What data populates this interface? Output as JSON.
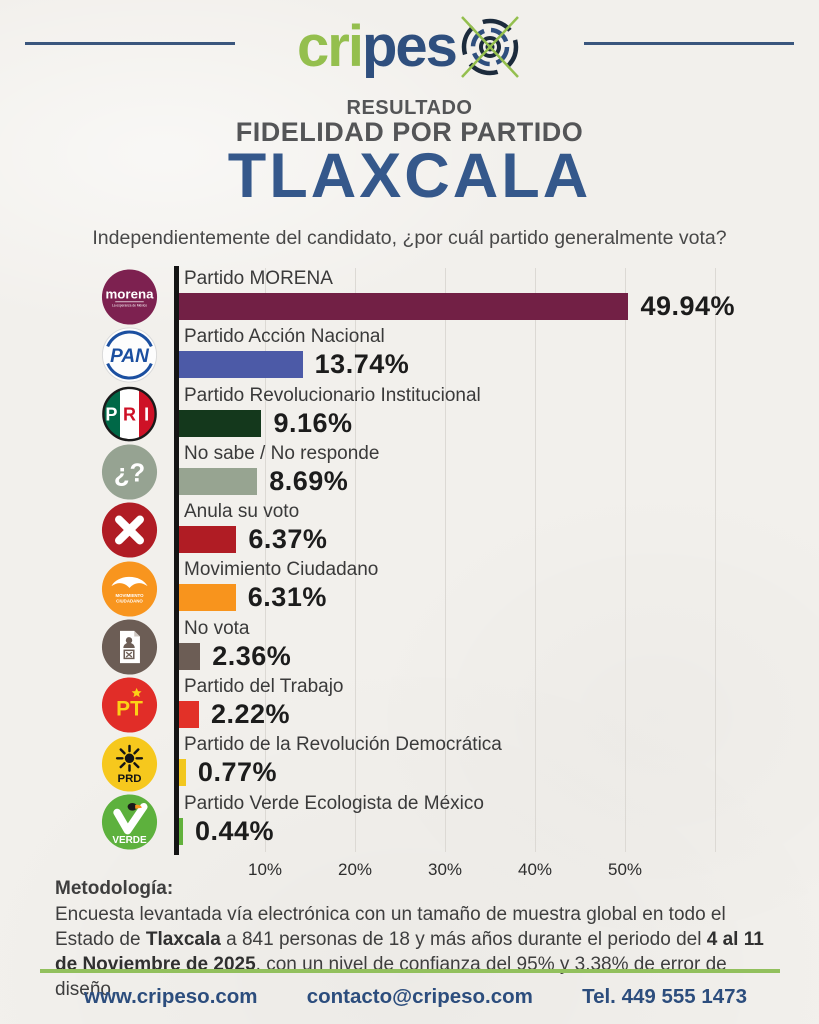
{
  "header": {
    "logo": {
      "part1": "cri",
      "part2": "pes",
      "color_green": "#94bf4e",
      "color_blue": "#2f4f7e"
    },
    "title_line1": "RESULTADO",
    "title_line2": "FIDELIDAD POR PARTIDO",
    "state": "TLAXCALA",
    "subtitle": "Independientemente del candidato, ¿por cuál partido generalmente vota?"
  },
  "chart_data": {
    "type": "bar",
    "orientation": "horizontal",
    "unit": "percent",
    "xlim": [
      0,
      50
    ],
    "x_ticks": [
      "10%",
      "20%",
      "30%",
      "40%",
      "50%"
    ],
    "grid": true,
    "rows": [
      {
        "party": "Partido MORENA",
        "value": 49.94,
        "label": "49.94%",
        "color": "#722045",
        "icon": "morena-logo"
      },
      {
        "party": "Partido Acción Nacional",
        "value": 13.74,
        "label": "13.74%",
        "color": "#4c5aa7",
        "icon": "pan-logo"
      },
      {
        "party": "Partido Revolucionario Institucional",
        "value": 9.16,
        "label": "9.16%",
        "color": "#14381c",
        "icon": "pri-logo"
      },
      {
        "party": "No sabe / No responde",
        "value": 8.69,
        "label": "8.69%",
        "color": "#97a491",
        "icon": "no-sabe-icon"
      },
      {
        "party": "Anula su voto",
        "value": 6.37,
        "label": "6.37%",
        "color": "#b01c24",
        "icon": "anula-voto-icon"
      },
      {
        "party": "Movimiento Ciudadano",
        "value": 6.31,
        "label": "6.31%",
        "color": "#f8941d",
        "icon": "movimiento-ciudadano-logo"
      },
      {
        "party": "No vota",
        "value": 2.36,
        "label": "2.36%",
        "color": "#6c5d55",
        "icon": "no-vota-icon"
      },
      {
        "party": "Partido del Trabajo",
        "value": 2.22,
        "label": "2.22%",
        "color": "#e23128",
        "icon": "pt-logo"
      },
      {
        "party": "Partido de la Revolución Democrática",
        "value": 0.77,
        "label": "0.77%",
        "color": "#f2c71e",
        "icon": "prd-logo"
      },
      {
        "party": "Partido Verde Ecologista de México",
        "value": 0.44,
        "label": "0.44%",
        "color": "#62b13c",
        "icon": "verde-logo"
      }
    ]
  },
  "methodology": {
    "heading": "Metodología:",
    "segments": [
      {
        "text": "Encuesta levantada vía electrónica con un tamaño de muestra global en todo el Estado de ",
        "bold": false
      },
      {
        "text": "Tlaxcala",
        "bold": true
      },
      {
        "text": " a 841 personas de 18 y más años durante el periodo del ",
        "bold": false
      },
      {
        "text": "4 al 11 de Noviembre de 2025",
        "bold": true
      },
      {
        "text": ", con un nivel de confianza del 95% y 3.38% de error de diseño.",
        "bold": false
      }
    ]
  },
  "footer": {
    "website": "www.cripeso.com",
    "email": "contacto@cripeso.com",
    "phone": "Tel. 449 555 1473"
  }
}
